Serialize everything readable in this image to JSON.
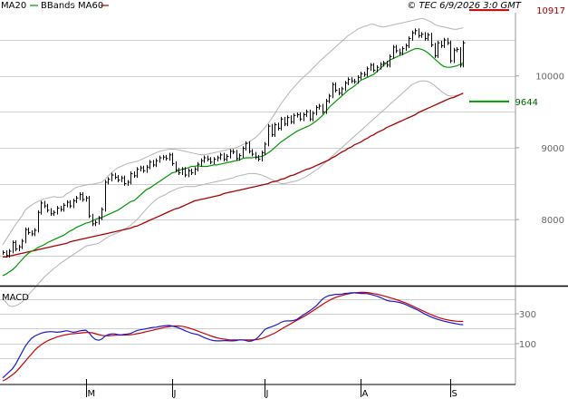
{
  "header": {
    "legend": [
      {
        "label": "MA20",
        "color": "#009900"
      },
      {
        "label": "BBands",
        "color": "#b4b4b4"
      },
      {
        "label": "MA60",
        "color": "#aa0000"
      }
    ],
    "timestamp": "© TEC 6/9/2026 3:0 GMT"
  },
  "colors": {
    "grid": "#cfcfcf",
    "price": "#000000",
    "ma20": "#009900",
    "bb": "#b4b4b4",
    "ma60": "#aa0000",
    "macd": "#1a1acc",
    "signal": "#cc0000",
    "resistance": "#cc0000",
    "support": "#009900",
    "resistance_text": "#aa0000",
    "support_text": "#006600",
    "axis_text": "#666666"
  },
  "chart_data": [
    {
      "type": "ohlc",
      "panel": "price",
      "title": "",
      "ylim": [
        7080,
        10880
      ],
      "yticks": [
        8000,
        9000,
        10000
      ],
      "ytick_labels": [
        "8000",
        "9000",
        "10000"
      ],
      "x_labels": [
        {
          "label": "M",
          "index": 26
        },
        {
          "label": "J",
          "index": 53
        },
        {
          "label": "J",
          "index": 82
        },
        {
          "label": "A",
          "index": 112
        },
        {
          "label": "S",
          "index": 140
        }
      ],
      "closes": [
        7540,
        7500,
        7560,
        7680,
        7590,
        7620,
        7700,
        7860,
        7820,
        7800,
        7850,
        8100,
        8230,
        8190,
        8130,
        8080,
        8100,
        8160,
        8140,
        8200,
        8240,
        8190,
        8260,
        8300,
        8350,
        8280,
        8300,
        8050,
        7940,
        7960,
        8020,
        8140,
        8520,
        8560,
        8620,
        8590,
        8550,
        8580,
        8500,
        8520,
        8640,
        8610,
        8700,
        8720,
        8680,
        8730,
        8800,
        8760,
        8820,
        8860,
        8870,
        8850,
        8900,
        8780,
        8690,
        8650,
        8700,
        8620,
        8680,
        8650,
        8700,
        8770,
        8820,
        8860,
        8840,
        8800,
        8840,
        8860,
        8900,
        8840,
        8880,
        8950,
        8940,
        8850,
        8890,
        8990,
        9060,
        8950,
        8910,
        8870,
        8840,
        8930,
        9050,
        9300,
        9180,
        9320,
        9270,
        9400,
        9330,
        9420,
        9360,
        9450,
        9460,
        9400,
        9460,
        9500,
        9400,
        9480,
        9560,
        9580,
        9500,
        9650,
        9720,
        9880,
        9800,
        9760,
        9820,
        9900,
        9950,
        9930,
        9920,
        9980,
        10030,
        10020,
        10100,
        10150,
        10080,
        10120,
        10160,
        10180,
        10150,
        10270,
        10400,
        10350,
        10320,
        10380,
        10420,
        10520,
        10600,
        10630,
        10560,
        10580,
        10520,
        10570,
        10430,
        10280,
        10460,
        10420,
        10500,
        10460,
        10210,
        10360,
        10370,
        10150,
        10460
      ],
      "ma20": [
        7220,
        7240,
        7270,
        7300,
        7340,
        7390,
        7440,
        7490,
        7530,
        7560,
        7580,
        7610,
        7630,
        7650,
        7680,
        7700,
        7720,
        7740,
        7760,
        7780,
        7810,
        7840,
        7860,
        7890,
        7910,
        7930,
        7950,
        7960,
        7980,
        8000,
        8020,
        8030,
        8050,
        8070,
        8090,
        8110,
        8130,
        8160,
        8190,
        8220,
        8250,
        8260,
        8300,
        8340,
        8380,
        8420,
        8440,
        8470,
        8500,
        8530,
        8560,
        8590,
        8620,
        8650,
        8660,
        8680,
        8700,
        8710,
        8720,
        8740,
        8740,
        8750,
        8740,
        8740,
        8740,
        8750,
        8760,
        8760,
        8770,
        8780,
        8790,
        8800,
        8810,
        8820,
        8830,
        8850,
        8860,
        8860,
        8860,
        8870,
        8870,
        8880,
        8900,
        8930,
        8960,
        9000,
        9040,
        9080,
        9110,
        9140,
        9170,
        9200,
        9230,
        9250,
        9270,
        9290,
        9310,
        9340,
        9370,
        9410,
        9450,
        9500,
        9560,
        9600,
        9640,
        9680,
        9720,
        9760,
        9800,
        9830,
        9860,
        9900,
        9940,
        9960,
        9980,
        10000,
        10020,
        10060,
        10100,
        10140,
        10180,
        10220,
        10240,
        10260,
        10280,
        10300,
        10320,
        10340,
        10360,
        10380,
        10380,
        10370,
        10350,
        10320,
        10280,
        10240,
        10200,
        10160,
        10130,
        10120,
        10120,
        10130,
        10140,
        10160,
        10180
      ],
      "bb_upper": [
        7650,
        7720,
        7790,
        7860,
        7930,
        7990,
        8050,
        8130,
        8170,
        8200,
        8230,
        8250,
        8270,
        8290,
        8300,
        8310,
        8320,
        8310,
        8310,
        8320,
        8360,
        8380,
        8420,
        8450,
        8460,
        8470,
        8480,
        8490,
        8490,
        8500,
        8510,
        8520,
        8560,
        8610,
        8650,
        8690,
        8720,
        8740,
        8760,
        8780,
        8790,
        8800,
        8810,
        8830,
        8850,
        8870,
        8890,
        8910,
        8930,
        8950,
        8960,
        8970,
        8980,
        8980,
        8980,
        8970,
        8960,
        8950,
        8940,
        8930,
        8920,
        8910,
        8900,
        8900,
        8910,
        8920,
        8930,
        8940,
        8950,
        8960,
        8970,
        8980,
        8990,
        9000,
        9020,
        9040,
        9060,
        9080,
        9110,
        9140,
        9180,
        9230,
        9280,
        9340,
        9400,
        9470,
        9540,
        9610,
        9670,
        9730,
        9790,
        9840,
        9890,
        9940,
        9980,
        10020,
        10060,
        10110,
        10150,
        10200,
        10240,
        10280,
        10320,
        10360,
        10400,
        10440,
        10480,
        10520,
        10560,
        10590,
        10620,
        10650,
        10670,
        10690,
        10700,
        10720,
        10720,
        10700,
        10690,
        10680,
        10690,
        10700,
        10710,
        10720,
        10730,
        10740,
        10750,
        10760,
        10770,
        10780,
        10790,
        10800,
        10790,
        10770,
        10750,
        10720,
        10700,
        10690,
        10680,
        10670,
        10660,
        10650,
        10650,
        10660,
        10670
      ],
      "bb_lower": [
        6900,
        6850,
        6800,
        6790,
        6800,
        6820,
        6850,
        6900,
        6950,
        7000,
        7050,
        7100,
        7150,
        7200,
        7240,
        7280,
        7320,
        7350,
        7390,
        7420,
        7450,
        7480,
        7510,
        7540,
        7570,
        7600,
        7630,
        7640,
        7650,
        7660,
        7670,
        7700,
        7730,
        7760,
        7780,
        7800,
        7820,
        7840,
        7870,
        7890,
        7920,
        7960,
        8000,
        8050,
        8100,
        8150,
        8200,
        8240,
        8280,
        8310,
        8330,
        8350,
        8380,
        8400,
        8420,
        8440,
        8450,
        8460,
        8460,
        8460,
        8460,
        8470,
        8480,
        8490,
        8500,
        8510,
        8520,
        8530,
        8540,
        8550,
        8560,
        8570,
        8580,
        8600,
        8610,
        8620,
        8630,
        8640,
        8640,
        8640,
        8630,
        8620,
        8600,
        8580,
        8560,
        8540,
        8520,
        8500,
        8500,
        8510,
        8520,
        8530,
        8540,
        8560,
        8580,
        8600,
        8630,
        8660,
        8690,
        8720,
        8760,
        8800,
        8840,
        8880,
        8920,
        8960,
        9000,
        9040,
        9080,
        9120,
        9160,
        9200,
        9240,
        9280,
        9320,
        9360,
        9400,
        9440,
        9480,
        9520,
        9560,
        9600,
        9640,
        9680,
        9720,
        9760,
        9800,
        9840,
        9880,
        9900,
        9920,
        9930,
        9930,
        9920,
        9900,
        9870,
        9830,
        9790,
        9760,
        9730,
        9720,
        9720,
        9730,
        9740,
        9750
      ],
      "ma60": [
        7480,
        7480,
        7490,
        7500,
        7510,
        7520,
        7530,
        7540,
        7550,
        7560,
        7570,
        7580,
        7590,
        7600,
        7610,
        7620,
        7630,
        7640,
        7650,
        7660,
        7670,
        7690,
        7700,
        7710,
        7720,
        7730,
        7740,
        7750,
        7760,
        7770,
        7780,
        7790,
        7800,
        7810,
        7820,
        7830,
        7840,
        7850,
        7860,
        7870,
        7880,
        7900,
        7910,
        7930,
        7950,
        7970,
        7990,
        8010,
        8030,
        8050,
        8070,
        8090,
        8110,
        8130,
        8150,
        8160,
        8180,
        8200,
        8220,
        8240,
        8260,
        8270,
        8280,
        8290,
        8300,
        8310,
        8320,
        8330,
        8340,
        8360,
        8370,
        8380,
        8390,
        8400,
        8410,
        8420,
        8430,
        8440,
        8450,
        8460,
        8470,
        8480,
        8490,
        8500,
        8520,
        8530,
        8540,
        8560,
        8570,
        8590,
        8610,
        8620,
        8640,
        8660,
        8680,
        8700,
        8710,
        8730,
        8750,
        8770,
        8790,
        8810,
        8830,
        8860,
        8880,
        8910,
        8940,
        8960,
        8990,
        9010,
        9040,
        9060,
        9080,
        9110,
        9130,
        9160,
        9180,
        9210,
        9230,
        9250,
        9280,
        9300,
        9320,
        9340,
        9360,
        9380,
        9400,
        9420,
        9440,
        9460,
        9490,
        9510,
        9530,
        9550,
        9570,
        9590,
        9610,
        9630,
        9650,
        9670,
        9690,
        9700,
        9720,
        9740,
        9760
      ],
      "resistance": {
        "value": 10917,
        "label": "10917"
      },
      "support": {
        "value": 9644,
        "label": "9644"
      }
    },
    {
      "type": "line",
      "panel": "macd",
      "title": "MACD",
      "ylim": [
        -150,
        470
      ],
      "yticks": [
        100,
        300
      ],
      "ytick_labels": [
        "100",
        "300"
      ],
      "series": [
        {
          "name": "",
          "values": [
            -130,
            -110,
            -90,
            -70,
            -40,
            0,
            40,
            80,
            110,
            135,
            150,
            160,
            170,
            175,
            178,
            180,
            178,
            176,
            178,
            182,
            186,
            182,
            176,
            178,
            185,
            188,
            190,
            172,
            145,
            128,
            122,
            130,
            150,
            160,
            165,
            165,
            160,
            158,
            162,
            164,
            168,
            178,
            188,
            192,
            195,
            200,
            205,
            208,
            210,
            214,
            218,
            220,
            222,
            218,
            212,
            205,
            196,
            186,
            178,
            170,
            165,
            160,
            150,
            140,
            132,
            125,
            120,
            118,
            118,
            119,
            120,
            118,
            118,
            120,
            125,
            125,
            120,
            115,
            118,
            128,
            145,
            170,
            195,
            205,
            212,
            220,
            230,
            242,
            250,
            252,
            252,
            255,
            262,
            278,
            292,
            305,
            320,
            335,
            352,
            375,
            398,
            412,
            422,
            425,
            430,
            430,
            432,
            436,
            438,
            440,
            440,
            438,
            436,
            436,
            435,
            430,
            424,
            418,
            410,
            400,
            390,
            385,
            383,
            380,
            376,
            370,
            362,
            352,
            342,
            332,
            322,
            310,
            298,
            288,
            278,
            270,
            262,
            256,
            250,
            245,
            240,
            236,
            232,
            228,
            226
          ]
        },
        {
          "name": "",
          "values": [
            -150,
            -140,
            -125,
            -110,
            -92,
            -70,
            -45,
            -20,
            5,
            30,
            55,
            75,
            92,
            106,
            118,
            128,
            136,
            144,
            150,
            156,
            160,
            164,
            166,
            168,
            170,
            172,
            174,
            174,
            172,
            166,
            160,
            155,
            152,
            152,
            154,
            156,
            157,
            157,
            157,
            158,
            159,
            162,
            166,
            170,
            175,
            180,
            185,
            190,
            195,
            200,
            205,
            210,
            214,
            217,
            218,
            218,
            216,
            212,
            206,
            199,
            192,
            184,
            176,
            168,
            160,
            152,
            145,
            139,
            134,
            130,
            127,
            125,
            124,
            124,
            124,
            124,
            124,
            124,
            124,
            126,
            129,
            134,
            141,
            150,
            160,
            170,
            182,
            195,
            208,
            220,
            232,
            244,
            256,
            268,
            280,
            292,
            306,
            320,
            334,
            348,
            362,
            376,
            388,
            399,
            408,
            416,
            422,
            428,
            433,
            437,
            440,
            442,
            443,
            443,
            442,
            439,
            435,
            431,
            426,
            420,
            414,
            408,
            402,
            395,
            388,
            380,
            372,
            363,
            353,
            343,
            333,
            323,
            313,
            303,
            294,
            285,
            277,
            270,
            264,
            259,
            255,
            252,
            250,
            249,
            248
          ]
        }
      ]
    }
  ]
}
